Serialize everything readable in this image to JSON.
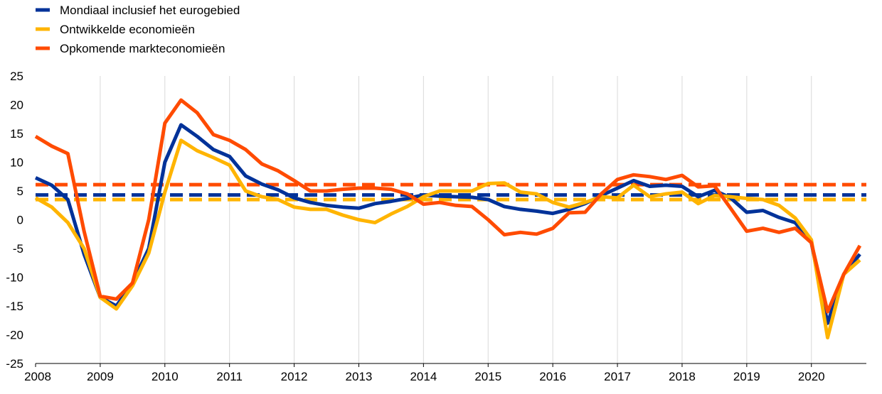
{
  "chart_data": {
    "type": "line",
    "title": "",
    "xlabel": "",
    "ylabel": "",
    "ylim": [
      -25,
      25
    ],
    "yticks": [
      25,
      20,
      15,
      10,
      5,
      0,
      -5,
      -10,
      -15,
      -20,
      -25
    ],
    "xlim": [
      2008,
      2020.85
    ],
    "xticks": [
      "2008",
      "2009",
      "2010",
      "2011",
      "2012",
      "2013",
      "2014",
      "2015",
      "2016",
      "2017",
      "2018",
      "2019",
      "2020"
    ],
    "grid": "vertical",
    "legend": "top-left",
    "x": [
      2008,
      2008.25,
      2008.5,
      2008.75,
      2009,
      2009.25,
      2009.5,
      2009.75,
      2010,
      2010.25,
      2010.5,
      2010.75,
      2011,
      2011.25,
      2011.5,
      2011.75,
      2012,
      2012.25,
      2012.5,
      2012.75,
      2013,
      2013.25,
      2013.5,
      2013.75,
      2014,
      2014.25,
      2014.5,
      2014.75,
      2015,
      2015.25,
      2015.5,
      2015.75,
      2016,
      2016.25,
      2016.5,
      2016.75,
      2017,
      2017.25,
      2017.5,
      2017.75,
      2018,
      2018.25,
      2018.5,
      2018.75,
      2019,
      2019.25,
      2019.5,
      2019.75,
      2020,
      2020.25,
      2020.5,
      2020.75
    ],
    "series": [
      {
        "name": "Mondiaal inclusief het eurogebied",
        "color": "#003299",
        "values": [
          7.3,
          6.0,
          3.5,
          -6.0,
          -13.5,
          -15.0,
          -11.0,
          -5.0,
          10.0,
          16.5,
          14.5,
          12.2,
          11.0,
          7.6,
          6.2,
          5.2,
          3.8,
          3.0,
          2.5,
          2.2,
          2.0,
          2.8,
          3.2,
          3.7,
          4.3,
          4.1,
          4.0,
          3.9,
          3.5,
          2.3,
          1.8,
          1.5,
          1.1,
          1.8,
          2.8,
          4.2,
          5.5,
          6.8,
          5.8,
          6.0,
          5.8,
          4.0,
          5.1,
          3.8,
          1.3,
          1.6,
          0.4,
          -0.5,
          -4.0,
          -18.0,
          -9.5,
          -6.0
        ],
        "average": 4.3
      },
      {
        "name": "Ontwikkelde economieën",
        "color": "#FFB400",
        "values": [
          3.8,
          2.2,
          -0.5,
          -5.0,
          -13.5,
          -15.5,
          -11.5,
          -5.8,
          4.8,
          13.8,
          12.0,
          10.8,
          9.5,
          5.0,
          4.0,
          3.5,
          2.2,
          1.8,
          1.8,
          0.8,
          0.0,
          -0.5,
          1.0,
          2.3,
          4.0,
          5.0,
          5.0,
          5.0,
          6.3,
          6.4,
          4.8,
          4.5,
          3.0,
          2.2,
          3.0,
          4.0,
          3.8,
          6.0,
          4.0,
          4.5,
          4.8,
          2.8,
          4.2,
          4.0,
          3.7,
          3.5,
          2.5,
          0.3,
          -3.5,
          -20.5,
          -9.5,
          -7.0
        ],
        "average": 3.5
      },
      {
        "name": "Opkomende markteconomieën",
        "color": "#FF4B00",
        "values": [
          14.5,
          12.8,
          11.5,
          -2.0,
          -13.3,
          -13.8,
          -11.0,
          0.0,
          16.8,
          20.8,
          18.6,
          14.8,
          13.8,
          12.2,
          9.7,
          8.5,
          6.8,
          5.0,
          5.0,
          5.3,
          5.5,
          5.5,
          5.3,
          4.5,
          2.7,
          3.0,
          2.5,
          2.3,
          0.0,
          -2.6,
          -2.2,
          -2.5,
          -1.5,
          1.2,
          1.3,
          4.5,
          7.0,
          7.8,
          7.5,
          7.0,
          7.7,
          5.7,
          5.9,
          2.0,
          -2.0,
          -1.5,
          -2.2,
          -1.5,
          -4.0,
          -16.0,
          -9.5,
          -4.5
        ],
        "average": 6.1
      }
    ]
  }
}
